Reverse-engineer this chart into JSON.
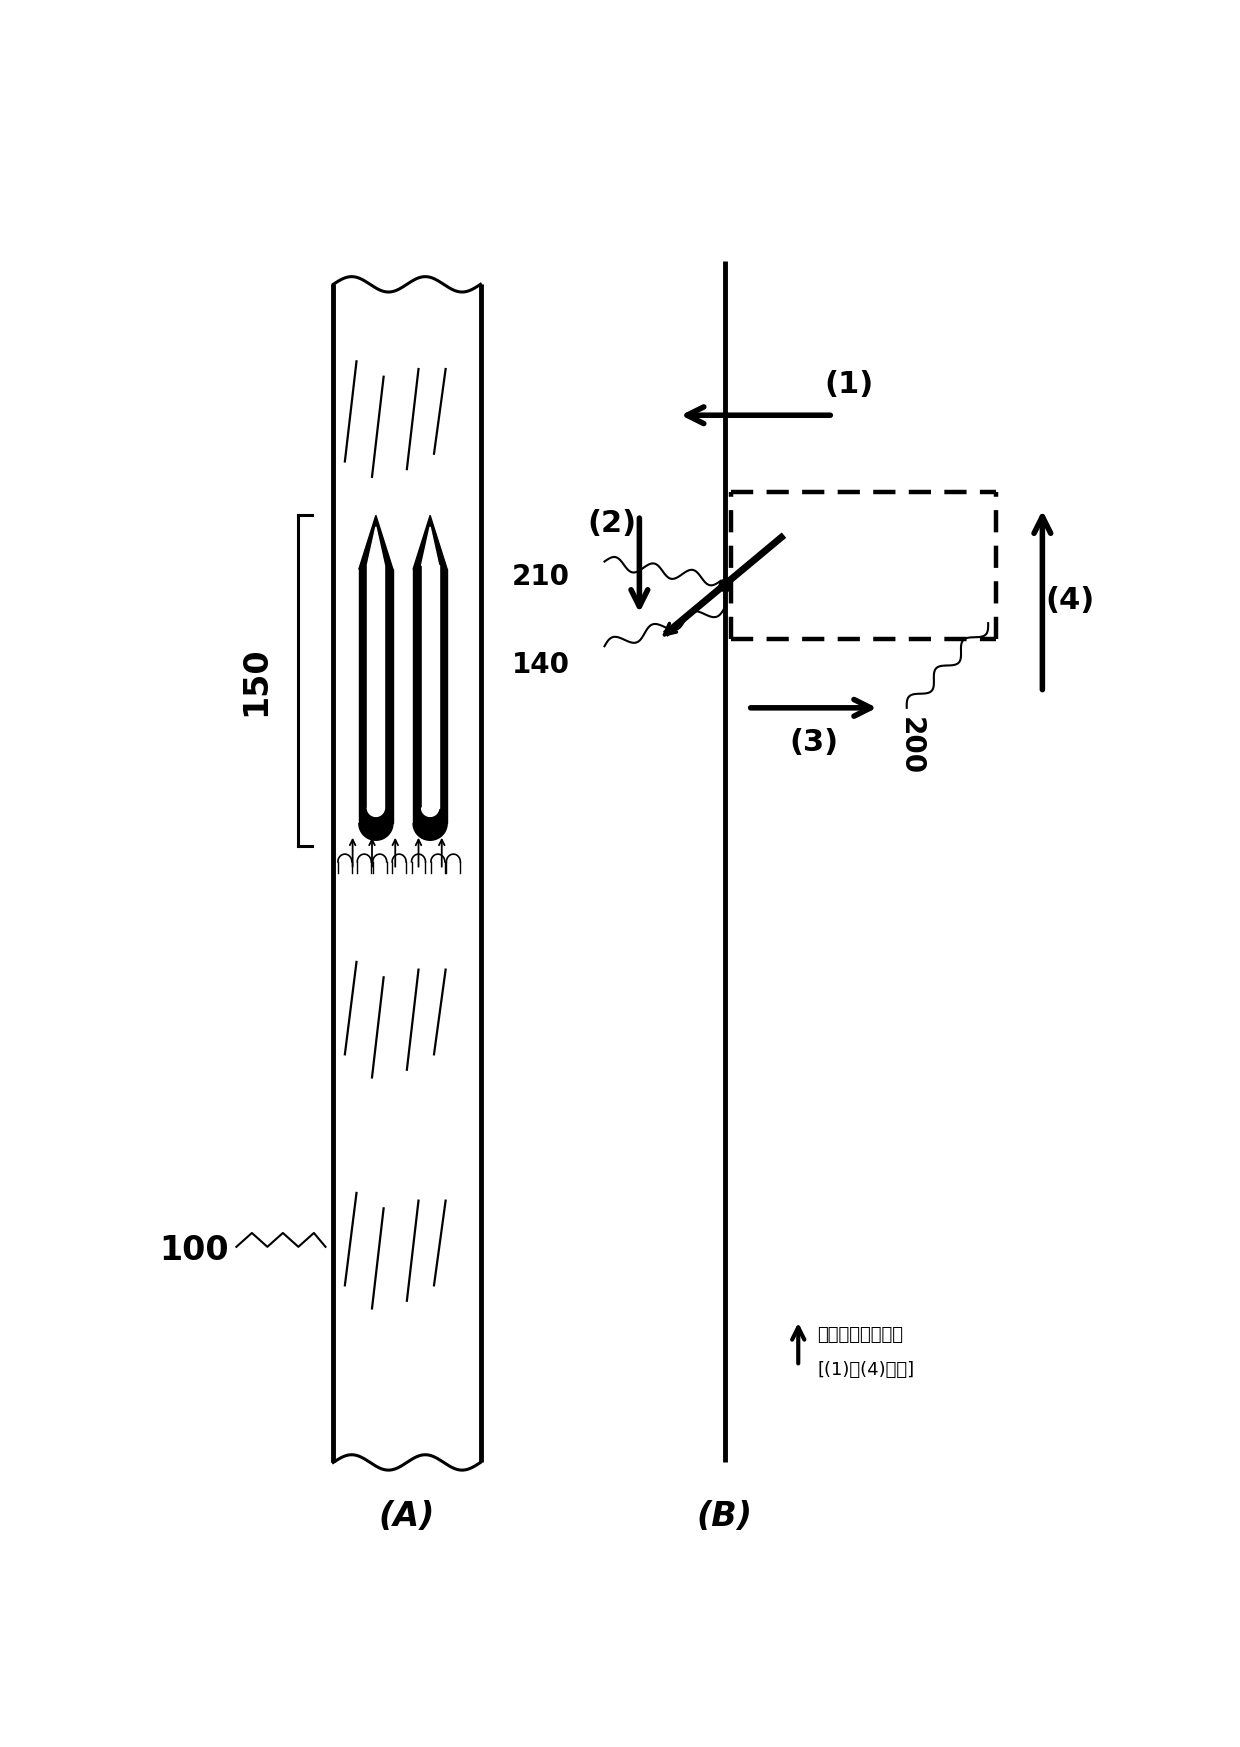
{
  "bg_color": "#ffffff",
  "fig_width": 12.4,
  "fig_height": 17.47,
  "label_A": "(A)",
  "label_B": "(B)",
  "label_100": "100",
  "label_150": "150",
  "label_200": "200",
  "label_140": "140",
  "label_210": "210",
  "label_1": "(1)",
  "label_2": "(2)",
  "label_3": "(3)",
  "label_4": "(4)",
  "legend_line1": "分繊機構移動方向",
  "legend_line2": "[(1)～(4)重複]"
}
